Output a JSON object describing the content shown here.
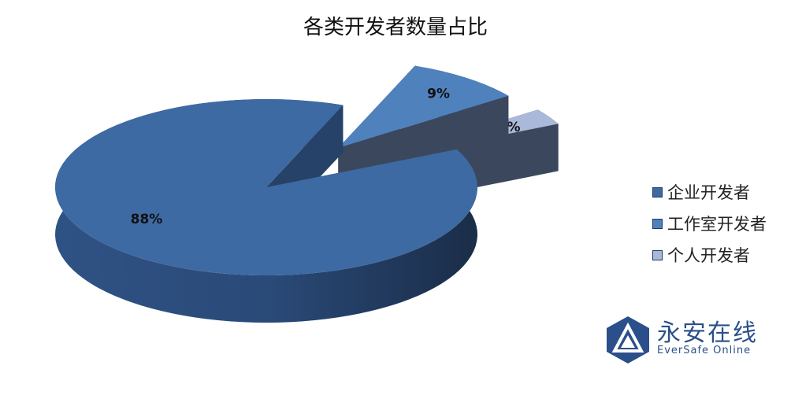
{
  "chart_data": {
    "type": "pie",
    "title": "各类开发者数量占比",
    "categories": [
      "企业开发者",
      "工作室开发者",
      "个人开发者"
    ],
    "values": [
      88,
      9,
      3
    ],
    "labels": [
      "88%",
      "9%",
      "3%"
    ],
    "colors": [
      "#3e6aa3",
      "#4f81bd",
      "#aab9da"
    ],
    "legend_position": "right",
    "exploded": [
      false,
      true,
      true
    ],
    "style": "3d"
  },
  "watermark": {
    "text_cn": "永安在线",
    "text_en": "EverSafe Online"
  }
}
